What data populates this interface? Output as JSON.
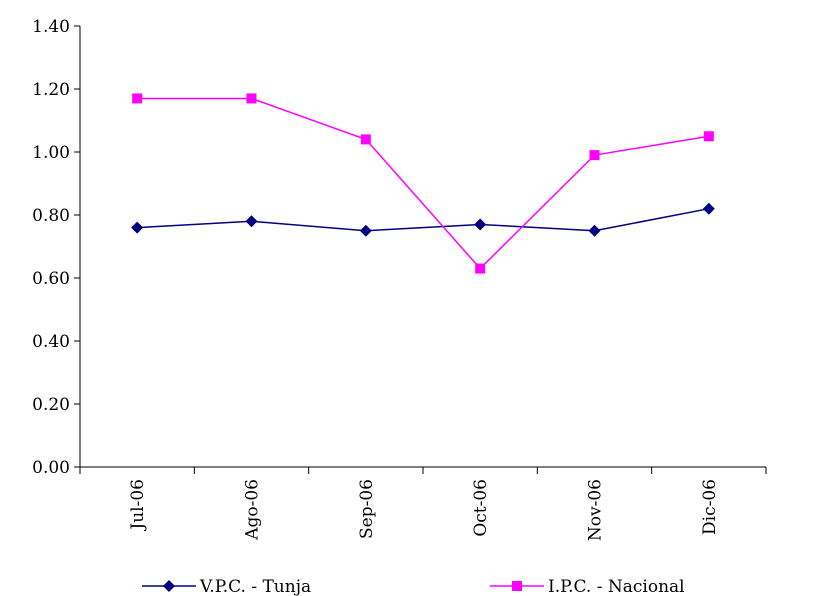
{
  "chart_data": {
    "type": "line",
    "title": "",
    "xlabel": "",
    "ylabel": "",
    "categories": [
      "Jul-06",
      "Ago-06",
      "Sep-06",
      "Oct-06",
      "Nov-06",
      "Dic-06"
    ],
    "ylim": [
      0,
      1.4
    ],
    "yticks": [
      "0.00",
      "0.20",
      "0.40",
      "0.60",
      "0.80",
      "1.00",
      "1.20",
      "1.40"
    ],
    "grid": false,
    "legend_position": "bottom",
    "series": [
      {
        "name": "V.P.C. - Tunja",
        "color": "#000080",
        "marker": "diamond",
        "values": [
          0.76,
          0.78,
          0.75,
          0.77,
          0.75,
          0.82
        ]
      },
      {
        "name": "I.P.C. - Nacional",
        "color": "#FF00FF",
        "marker": "square",
        "values": [
          1.17,
          1.17,
          1.04,
          0.63,
          0.99,
          1.05
        ]
      }
    ]
  }
}
